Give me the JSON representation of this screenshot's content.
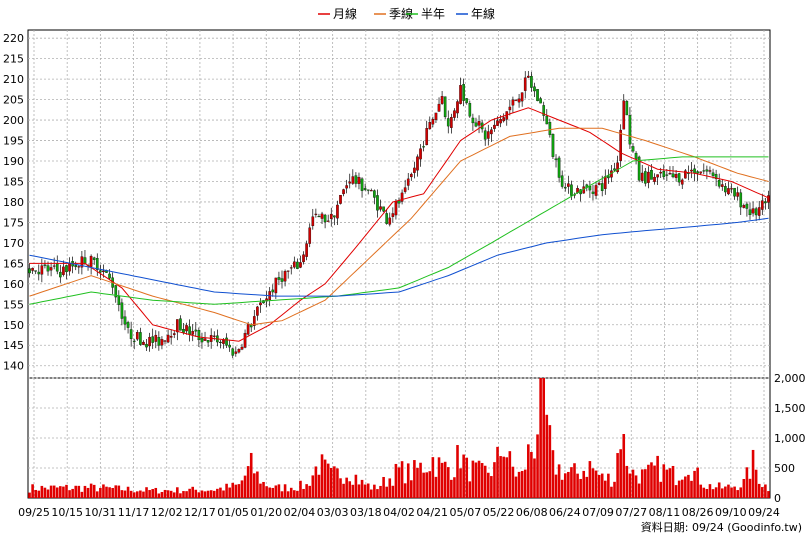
{
  "legend": [
    {
      "name": "月線",
      "color": "#e00000"
    },
    {
      "name": "季線",
      "color": "#e07020"
    },
    {
      "name": "半年",
      "color": "#20c020"
    },
    {
      "name": "年線",
      "color": "#1050d0"
    }
  ],
  "source_text": "資料日期: 09/24  (Goodinfo.tw)",
  "chart_data": [
    {
      "type": "candlestick",
      "ylim": [
        137,
        222
      ],
      "y_ticks": [
        140,
        145,
        150,
        155,
        160,
        165,
        170,
        175,
        180,
        185,
        190,
        195,
        200,
        205,
        210,
        215,
        220
      ],
      "x_ticks": [
        "09/25",
        "10/15",
        "10/31",
        "11/17",
        "12/02",
        "12/17",
        "01/05",
        "01/20",
        "02/04",
        "03/03",
        "03/18",
        "04/02",
        "04/21",
        "05/07",
        "05/22",
        "06/08",
        "06/24",
        "07/09",
        "07/27",
        "08/11",
        "08/26",
        "09/10",
        "09/24"
      ],
      "close_anchors": [
        [
          0,
          164
        ],
        [
          10,
          163
        ],
        [
          18,
          166
        ],
        [
          22,
          165
        ],
        [
          27,
          160
        ],
        [
          32,
          148
        ],
        [
          38,
          146
        ],
        [
          42,
          146
        ],
        [
          48,
          150
        ],
        [
          55,
          147
        ],
        [
          62,
          146
        ],
        [
          67,
          143
        ],
        [
          71,
          149
        ],
        [
          76,
          156
        ],
        [
          82,
          162
        ],
        [
          88,
          165
        ],
        [
          92,
          176
        ],
        [
          98,
          176
        ],
        [
          104,
          186
        ],
        [
          110,
          183
        ],
        [
          116,
          176
        ],
        [
          122,
          182
        ],
        [
          128,
          195
        ],
        [
          134,
          206
        ],
        [
          136,
          198
        ],
        [
          140,
          208
        ],
        [
          143,
          202
        ],
        [
          148,
          196
        ],
        [
          152,
          199
        ],
        [
          156,
          203
        ],
        [
          162,
          210
        ],
        [
          167,
          202
        ],
        [
          170,
          192
        ],
        [
          174,
          183
        ],
        [
          180,
          183
        ],
        [
          186,
          184
        ],
        [
          191,
          190
        ],
        [
          193,
          206
        ],
        [
          195,
          195
        ],
        [
          198,
          186
        ],
        [
          204,
          186
        ],
        [
          210,
          186
        ],
        [
          216,
          188
        ],
        [
          222,
          187
        ],
        [
          226,
          183
        ],
        [
          230,
          181
        ],
        [
          235,
          177
        ],
        [
          240,
          180
        ]
      ],
      "ma_series": [
        {
          "name": "月線",
          "values": [
            [
              0,
              165
            ],
            [
              18,
              165
            ],
            [
              30,
              159
            ],
            [
              40,
              150
            ],
            [
              55,
              147
            ],
            [
              68,
              146
            ],
            [
              78,
              150
            ],
            [
              88,
              156
            ],
            [
              96,
              160
            ],
            [
              105,
              168
            ],
            [
              118,
              180
            ],
            [
              128,
              182
            ],
            [
              140,
              195
            ],
            [
              150,
              200
            ],
            [
              162,
              203
            ],
            [
              172,
              200
            ],
            [
              182,
              197
            ],
            [
              192,
              192
            ],
            [
              204,
              188
            ],
            [
              216,
              187
            ],
            [
              228,
              185
            ],
            [
              240,
              181
            ]
          ]
        },
        {
          "name": "季線",
          "values": [
            [
              0,
              157
            ],
            [
              20,
              162
            ],
            [
              40,
              157
            ],
            [
              60,
              153
            ],
            [
              72,
              150
            ],
            [
              82,
              151
            ],
            [
              96,
              156
            ],
            [
              110,
              166
            ],
            [
              124,
              176
            ],
            [
              140,
              190
            ],
            [
              156,
              196
            ],
            [
              172,
              198
            ],
            [
              186,
              198
            ],
            [
              200,
              195
            ],
            [
              216,
              191
            ],
            [
              230,
              187
            ],
            [
              240,
              185
            ]
          ]
        },
        {
          "name": "半年",
          "values": [
            [
              0,
              155
            ],
            [
              20,
              158
            ],
            [
              40,
              156
            ],
            [
              60,
              155
            ],
            [
              80,
              156
            ],
            [
              100,
              157
            ],
            [
              120,
              159
            ],
            [
              136,
              164
            ],
            [
              150,
              170
            ],
            [
              166,
              177
            ],
            [
              182,
              184
            ],
            [
              196,
              190
            ],
            [
              212,
              191
            ],
            [
              226,
              191
            ],
            [
              238,
              191
            ]
          ]
        },
        {
          "name": "年線",
          "values": [
            [
              0,
              167
            ],
            [
              20,
              164
            ],
            [
              40,
              161
            ],
            [
              60,
              158
            ],
            [
              80,
              157
            ],
            [
              100,
              157
            ],
            [
              120,
              158
            ],
            [
              136,
              162
            ],
            [
              152,
              167
            ],
            [
              168,
              170
            ],
            [
              186,
              172
            ],
            [
              200,
              173
            ],
            [
              216,
              174
            ],
            [
              230,
              175
            ],
            [
              240,
              176
            ]
          ]
        }
      ]
    },
    {
      "type": "bar",
      "ylim": [
        0,
        2000
      ],
      "y_ticks": [
        "0",
        "500",
        "1,000",
        "1,500",
        "2,000"
      ],
      "volume_anchors": [
        [
          0,
          200
        ],
        [
          20,
          210
        ],
        [
          40,
          150
        ],
        [
          60,
          170
        ],
        [
          68,
          250
        ],
        [
          72,
          650
        ],
        [
          74,
          450
        ],
        [
          76,
          300
        ],
        [
          80,
          200
        ],
        [
          90,
          250
        ],
        [
          94,
          700
        ],
        [
          98,
          450
        ],
        [
          104,
          550
        ],
        [
          108,
          300
        ],
        [
          112,
          200
        ],
        [
          116,
          350
        ],
        [
          120,
          550
        ],
        [
          124,
          500
        ],
        [
          128,
          650
        ],
        [
          131,
          780
        ],
        [
          134,
          600
        ],
        [
          138,
          650
        ],
        [
          140,
          900
        ],
        [
          142,
          600
        ],
        [
          147,
          500
        ],
        [
          151,
          600
        ],
        [
          154,
          1100
        ],
        [
          156,
          700
        ],
        [
          158,
          500
        ],
        [
          160,
          450
        ],
        [
          162,
          900
        ],
        [
          164,
          1100
        ],
        [
          166,
          2000
        ],
        [
          168,
          1500
        ],
        [
          170,
          700
        ],
        [
          174,
          500
        ],
        [
          178,
          500
        ],
        [
          182,
          650
        ],
        [
          186,
          400
        ],
        [
          190,
          400
        ],
        [
          192,
          1350
        ],
        [
          194,
          800
        ],
        [
          196,
          500
        ],
        [
          200,
          450
        ],
        [
          204,
          600
        ],
        [
          210,
          450
        ],
        [
          214,
          750
        ],
        [
          216,
          500
        ],
        [
          220,
          250
        ],
        [
          226,
          200
        ],
        [
          232,
          300
        ],
        [
          235,
          700
        ],
        [
          238,
          300
        ],
        [
          240,
          200
        ]
      ]
    }
  ]
}
